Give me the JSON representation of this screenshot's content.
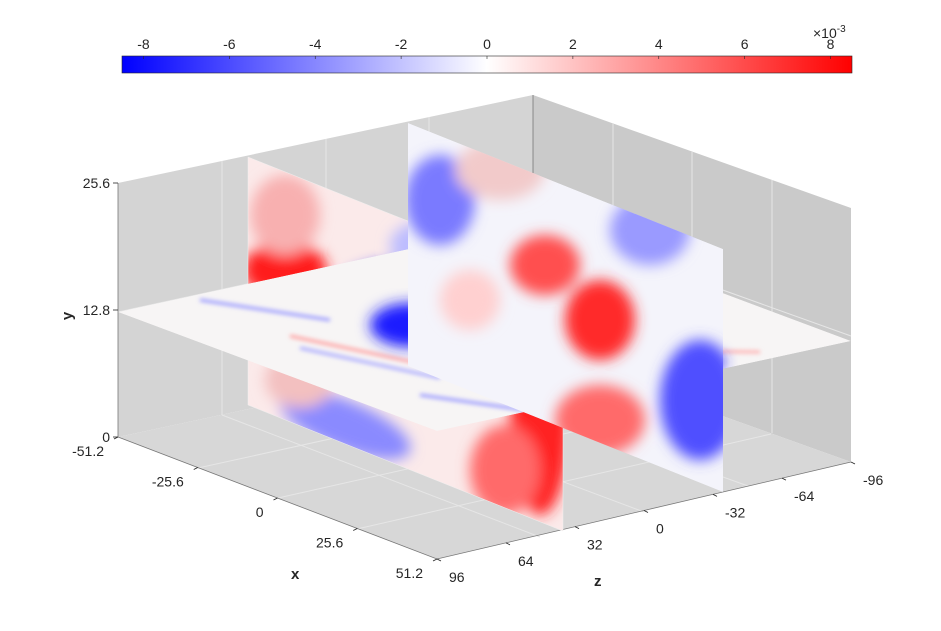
{
  "chart_data": {
    "type": "volume-slice",
    "colorbar": {
      "ticks": [
        "-8",
        "-6",
        "-4",
        "-2",
        "0",
        "2",
        "4",
        "6",
        "8"
      ],
      "tick_values": [
        -0.008,
        -0.006,
        -0.004,
        -0.002,
        0,
        0.002,
        0.004,
        0.006,
        0.008
      ],
      "exponent": "×10",
      "exponent_power": "-3",
      "range": [
        -0.0085,
        0.0085
      ],
      "colors": {
        "negative": "#0000ff",
        "zero": "#ffffff",
        "positive": "#ff0000"
      },
      "placement": "top"
    },
    "axes": {
      "x": {
        "label": "x",
        "ticks": [
          "-51.2",
          "-25.6",
          "0",
          "25.6",
          "51.2"
        ],
        "values": [
          -51.2,
          -25.6,
          0,
          25.6,
          51.2
        ],
        "range": [
          -51.2,
          51.2
        ]
      },
      "y": {
        "label": "y",
        "ticks": [
          "0",
          "12.8",
          "25.6"
        ],
        "values": [
          0,
          12.8,
          25.6
        ],
        "range": [
          0,
          25.6
        ]
      },
      "z": {
        "label": "z",
        "ticks": [
          "96",
          "64",
          "32",
          "0",
          "-32",
          "-64",
          "-96"
        ],
        "values": [
          96,
          64,
          32,
          0,
          -32,
          -64,
          -96
        ],
        "range": [
          -96,
          96
        ]
      }
    },
    "slices": [
      {
        "plane": "z",
        "value": 48
      },
      {
        "plane": "z",
        "value": -48
      },
      {
        "plane": "y",
        "value": 12.8
      }
    ],
    "grid": true,
    "pane_color": "#d4d4d4"
  }
}
